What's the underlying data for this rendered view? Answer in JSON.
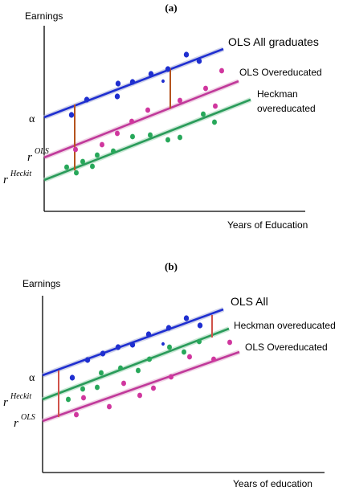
{
  "panel_a": {
    "label": "(a)",
    "y_axis_label": "Earnings",
    "x_axis_label": "Years of Education",
    "lines": [
      {
        "name": "OLS All graduates",
        "color": "#1f2fd0"
      },
      {
        "name": "OLS Overeducated",
        "color": "#c0399a"
      },
      {
        "name": "Heckman overeducated",
        "color": "#2a9b5a"
      }
    ],
    "intercept_labels": [
      "α",
      "r",
      "OLS",
      "r",
      "Heckit"
    ],
    "line_label_extra": "overeducated"
  },
  "panel_b": {
    "label": "(b)",
    "y_axis_label": "Earnings",
    "x_axis_label": "Years of education",
    "lines": [
      {
        "name": "OLS All",
        "color": "#1f2fd0"
      },
      {
        "name": "Heckman overeducated",
        "color": "#2a9b5a"
      },
      {
        "name": "OLS Overeducated",
        "color": "#c0399a"
      }
    ],
    "intercept_labels": [
      "α",
      "r",
      "Heckit",
      "r",
      "OLS"
    ]
  },
  "colors": {
    "blue": "#1f2fd0",
    "magenta": "#d0369e",
    "green": "#27a85a",
    "gap_line": "#b5541e",
    "gap_line_b": "#d0524a",
    "axis": "#000000"
  }
}
